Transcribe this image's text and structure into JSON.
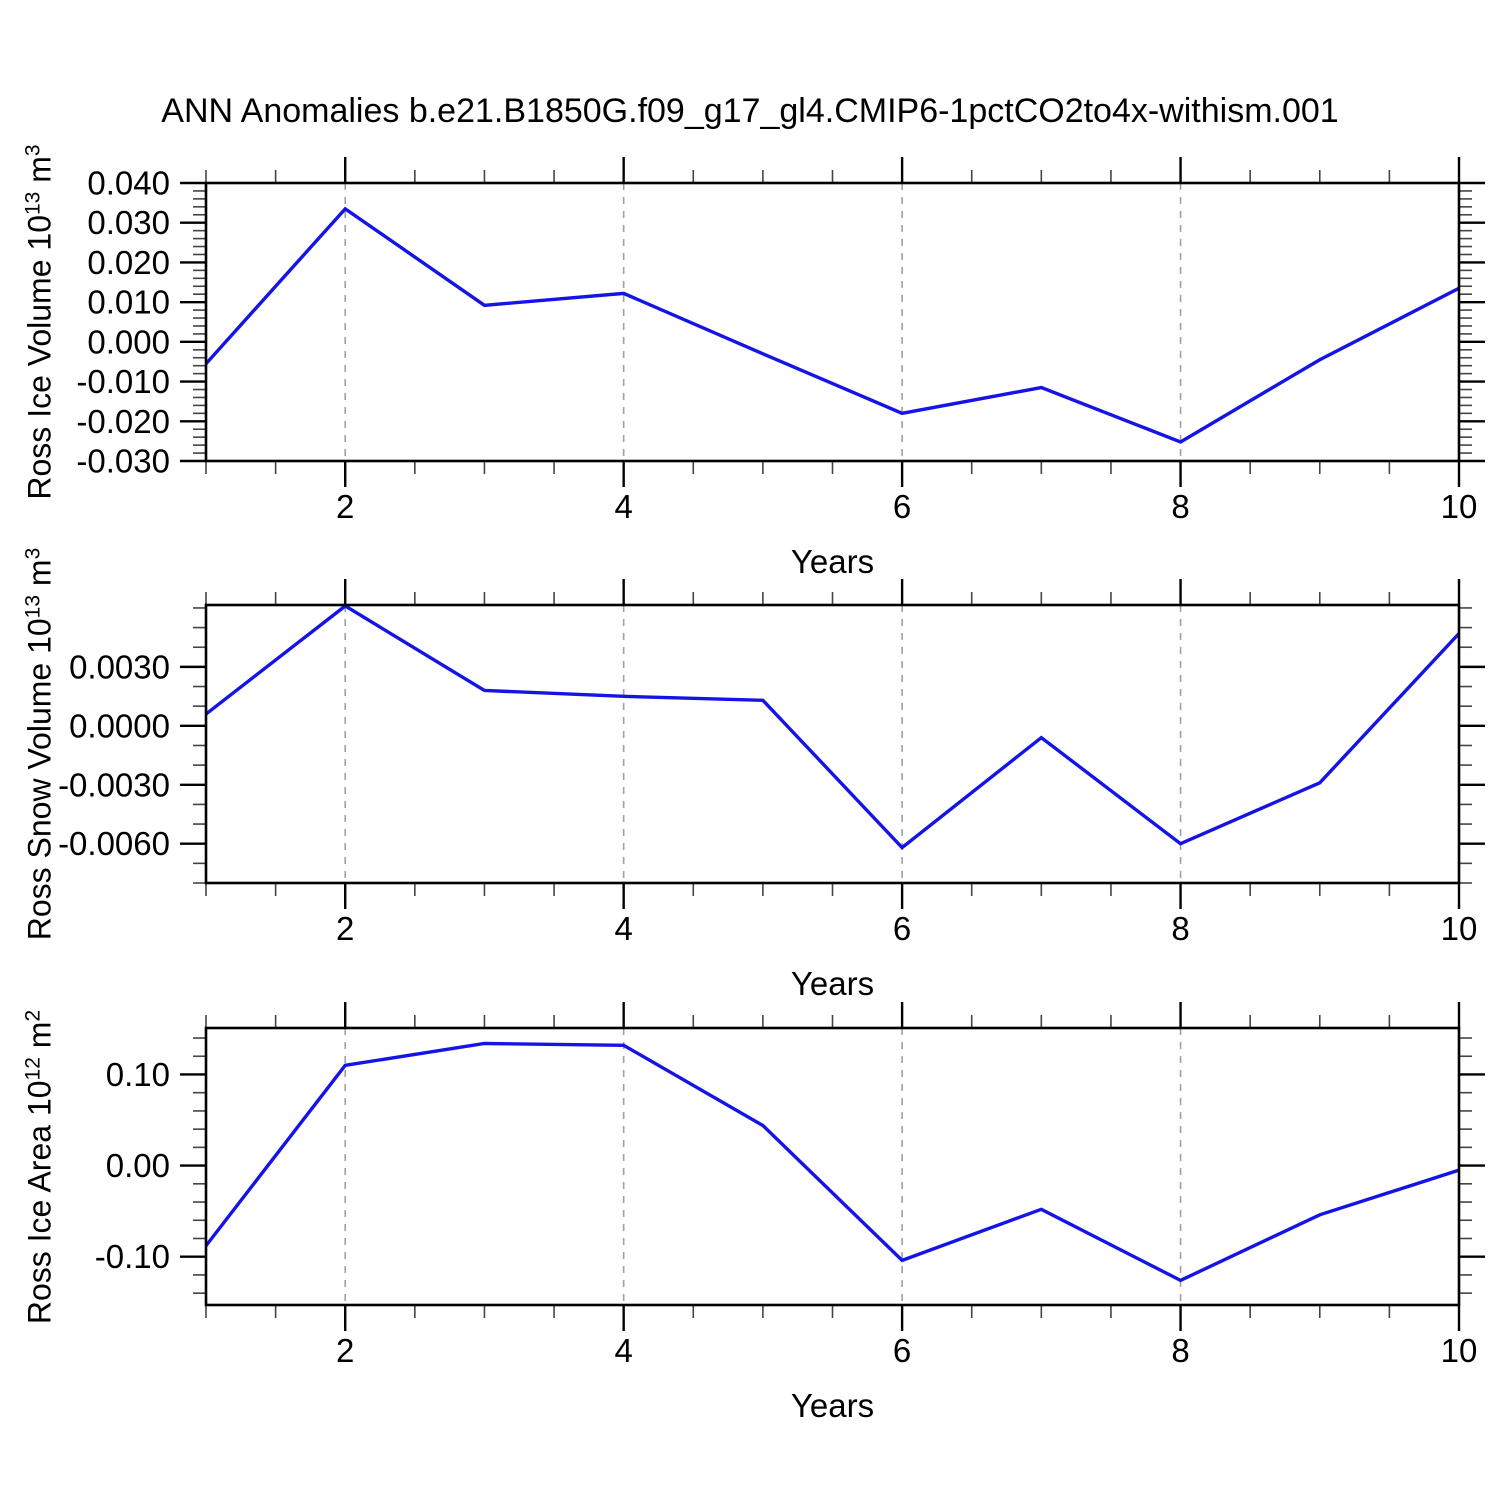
{
  "title": "ANN Anomalies b.e21.B1850G.f09_g17_gl4.CMIP6-1pctCO2to4x-withism.001",
  "style": {
    "line_color": "#1414E6",
    "grid_color": "#A0A0A0",
    "axis_color": "#000000",
    "major_tick_color": "#000000",
    "minor_tick_color": "#444444",
    "text_color": "#000000",
    "background": "#FFFFFF"
  },
  "chart_data": [
    {
      "type": "line",
      "panel": "top",
      "ylabel": "Ross Ice Volume 10^13 m^3",
      "ylabel_parts": {
        "prefix": "Ross Ice Volume 10",
        "sup": "13",
        "mid": " m",
        "sup2": "3"
      },
      "xlabel": "Years",
      "x": [
        1,
        2,
        3,
        4,
        5,
        6,
        7,
        8,
        9,
        10
      ],
      "values": [
        -0.0055,
        0.0335,
        0.0092,
        0.0122,
        -0.003,
        -0.018,
        -0.0115,
        -0.0252,
        -0.0045,
        0.0135
      ],
      "xlim": [
        1,
        10
      ],
      "ylim": [
        -0.03,
        0.04
      ],
      "x_ticks": [
        2,
        4,
        6,
        8,
        10
      ],
      "x_tick_labels": [
        "2",
        "4",
        "6",
        "8",
        "10"
      ],
      "x_minor_step": 0.5,
      "grid_x": [
        2,
        4,
        6,
        8
      ],
      "y_ticks": [
        0.04,
        0.03,
        0.02,
        0.01,
        0.0,
        -0.01,
        -0.02,
        -0.03
      ],
      "y_tick_labels": [
        "0.040",
        "0.030",
        "0.020",
        "0.010",
        "0.000",
        "-0.010",
        "-0.020",
        "-0.030"
      ],
      "y_minor_step": 0.002,
      "grid_on": "x-dashed",
      "legend": "none"
    },
    {
      "type": "line",
      "panel": "middle",
      "ylabel": "Ross Snow Volume 10^13 m^3",
      "ylabel_parts": {
        "prefix": "Ross Snow Volume 10",
        "sup": "13",
        "mid": " m",
        "sup2": "3"
      },
      "xlabel": "Years",
      "x": [
        1,
        2,
        3,
        4,
        5,
        6,
        7,
        8,
        9,
        10
      ],
      "values": [
        0.0006,
        0.0061,
        0.0018,
        0.0015,
        0.0013,
        -0.0062,
        -0.0006,
        -0.006,
        -0.0029,
        0.0047
      ],
      "xlim": [
        1,
        10
      ],
      "ylim": [
        -0.008,
        0.00615
      ],
      "x_ticks": [
        2,
        4,
        6,
        8,
        10
      ],
      "x_tick_labels": [
        "2",
        "4",
        "6",
        "8",
        "10"
      ],
      "x_minor_step": 0.5,
      "grid_x": [
        2,
        4,
        6,
        8
      ],
      "y_ticks": [
        0.003,
        0.0,
        -0.003,
        -0.006
      ],
      "y_tick_labels": [
        "0.0030",
        "0.0000",
        "-0.0030",
        "-0.0060"
      ],
      "y_minor_step": 0.001,
      "grid_on": "x-dashed",
      "legend": "none"
    },
    {
      "type": "line",
      "panel": "bottom",
      "ylabel": "Ross Ice Area 10^12 m^2",
      "ylabel_parts": {
        "prefix": "Ross Ice Area 10",
        "sup": "12",
        "mid": " m",
        "sup2": "2"
      },
      "xlabel": "Years",
      "x": [
        1,
        2,
        3,
        4,
        5,
        6,
        7,
        8,
        9,
        10
      ],
      "values": [
        -0.088,
        0.11,
        0.134,
        0.132,
        0.044,
        -0.104,
        -0.048,
        -0.126,
        -0.054,
        -0.005
      ],
      "xlim": [
        1,
        10
      ],
      "ylim": [
        -0.153,
        0.151
      ],
      "x_ticks": [
        2,
        4,
        6,
        8,
        10
      ],
      "x_tick_labels": [
        "2",
        "4",
        "6",
        "8",
        "10"
      ],
      "x_minor_step": 0.5,
      "grid_x": [
        2,
        4,
        6,
        8
      ],
      "y_ticks": [
        0.1,
        0.0,
        -0.1
      ],
      "y_tick_labels": [
        "0.10",
        "0.00",
        "-0.10"
      ],
      "y_minor_step": 0.02,
      "grid_on": "x-dashed",
      "legend": "none"
    }
  ]
}
